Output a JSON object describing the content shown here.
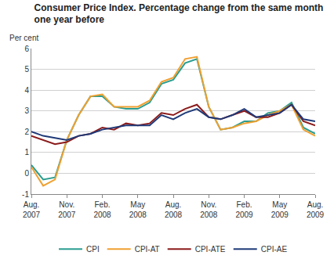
{
  "chart_data": {
    "type": "line",
    "title": "Consumer Price Index. Percentage change from the same month\none year before",
    "y_label": "Per cent",
    "categories": [
      "Aug.\n2007",
      null,
      null,
      "Nov.\n2007",
      null,
      null,
      "Feb.\n2008",
      null,
      null,
      "May\n2008",
      null,
      null,
      "Aug.\n2008",
      null,
      null,
      "Nov.\n2008",
      null,
      null,
      "Feb.\n2009",
      null,
      null,
      "May\n2009",
      null,
      null,
      "Aug.\n2009"
    ],
    "series": [
      {
        "name": "CPI",
        "color": "#2a9d90",
        "values": [
          0.4,
          -0.3,
          -0.2,
          1.6,
          2.8,
          3.7,
          3.7,
          3.2,
          3.1,
          3.1,
          3.4,
          4.3,
          4.5,
          5.3,
          5.5,
          3.2,
          2.1,
          2.2,
          2.5,
          2.5,
          2.9,
          3.0,
          3.4,
          2.2,
          1.9
        ]
      },
      {
        "name": "CPI-AT",
        "color": "#f0a030",
        "values": [
          0.3,
          -0.6,
          -0.3,
          1.6,
          2.8,
          3.7,
          3.8,
          3.2,
          3.2,
          3.2,
          3.5,
          4.4,
          4.6,
          5.5,
          5.6,
          3.2,
          2.1,
          2.2,
          2.4,
          2.5,
          2.8,
          3.0,
          3.3,
          2.1,
          1.8
        ]
      },
      {
        "name": "CPI-ATE",
        "color": "#8b1a1a",
        "values": [
          1.8,
          1.6,
          1.4,
          1.5,
          1.8,
          1.9,
          2.2,
          2.1,
          2.4,
          2.3,
          2.4,
          2.9,
          2.8,
          3.1,
          3.3,
          2.7,
          2.6,
          2.8,
          3.0,
          2.7,
          2.7,
          2.9,
          3.3,
          2.5,
          2.3
        ]
      },
      {
        "name": "CPI-AE",
        "color": "#1f3a78",
        "values": [
          2.0,
          1.8,
          1.7,
          1.6,
          1.8,
          1.9,
          2.1,
          2.2,
          2.3,
          2.3,
          2.3,
          2.8,
          2.6,
          2.9,
          3.1,
          2.7,
          2.6,
          2.8,
          3.1,
          2.7,
          2.8,
          2.9,
          3.3,
          2.6,
          2.5
        ]
      }
    ],
    "ylim": [
      -1,
      6
    ],
    "yticks": [
      -1,
      0,
      1,
      2,
      3,
      4,
      5,
      6
    ],
    "grid": true,
    "legend": "bottom"
  }
}
